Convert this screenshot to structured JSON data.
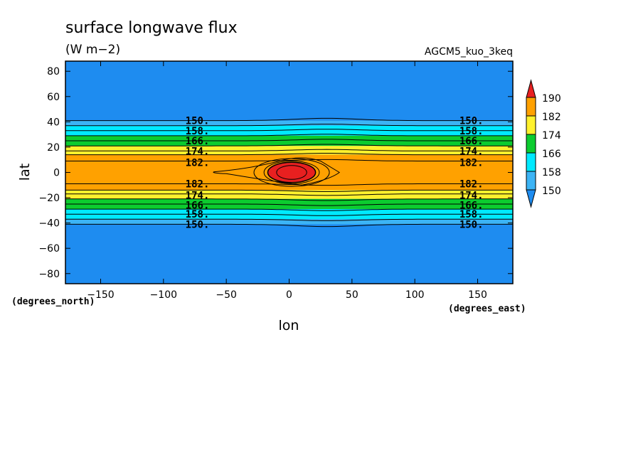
{
  "chart_data": {
    "type": "heatmap",
    "title": "surface longwave flux",
    "units": "(W m−2)",
    "model_label": "AGCM5_kuo_3keq",
    "xlabel": "lon",
    "ylabel": "lat",
    "x_units": "(degrees_east)",
    "y_units": "(degrees_north)",
    "xlim": [
      -178,
      178
    ],
    "ylim": [
      -88,
      88
    ],
    "x_ticks": [
      -150,
      -100,
      -50,
      0,
      50,
      100,
      150
    ],
    "y_ticks": [
      80,
      60,
      40,
      20,
      0,
      -20,
      -40,
      -60,
      -80
    ],
    "colorbar": {
      "levels": [
        150,
        158,
        166,
        174,
        182,
        190
      ],
      "colors": [
        "#1e8cf0",
        "#3cb4f5",
        "#00eaff",
        "#0ccc2f",
        "#fff12d",
        "#ffa100",
        "#e82020"
      ]
    },
    "colors": {
      "cold": "#1e8cf0",
      "mid_cold": "#3cb4f5",
      "cyan": "#00eaff",
      "green": "#0ccc2f",
      "yellow": "#fff12d",
      "orange": "#ffa100",
      "red": "#e82020"
    },
    "bands": [
      {
        "lat_from": 41,
        "lat_to": 37,
        "level": 150
      },
      {
        "lat_from": 37,
        "lat_to": 29,
        "level": 158
      },
      {
        "lat_from": 29,
        "lat_to": 21,
        "level": 166
      },
      {
        "lat_from": 21,
        "lat_to": 14,
        "level": 174
      },
      {
        "lat_from": 14,
        "lat_to": -14,
        "level": 182
      },
      {
        "lat_from": -14,
        "lat_to": -21,
        "level": 174
      },
      {
        "lat_from": -21,
        "lat_to": -29,
        "level": 166
      },
      {
        "lat_from": -29,
        "lat_to": -37,
        "level": 158
      },
      {
        "lat_from": -37,
        "lat_to": -41,
        "level": 150
      }
    ],
    "hotspot": {
      "lon": 0,
      "lat": 0,
      "level": 190
    },
    "contour_labels": [
      {
        "text": "150.",
        "lon": -73,
        "lat": 41
      },
      {
        "text": "158.",
        "lon": -73,
        "lat": 33
      },
      {
        "text": "166.",
        "lon": -73,
        "lat": 25
      },
      {
        "text": "174.",
        "lon": -73,
        "lat": 17
      },
      {
        "text": "182.",
        "lon": -73,
        "lat": 8
      },
      {
        "text": "182.",
        "lon": -73,
        "lat": -9
      },
      {
        "text": "174.",
        "lon": -73,
        "lat": -18
      },
      {
        "text": "166.",
        "lon": -73,
        "lat": -26
      },
      {
        "text": "158.",
        "lon": -73,
        "lat": -33
      },
      {
        "text": "150.",
        "lon": -73,
        "lat": -41
      },
      {
        "text": "150.",
        "lon": 145,
        "lat": 41
      },
      {
        "text": "158.",
        "lon": 145,
        "lat": 33
      },
      {
        "text": "166.",
        "lon": 145,
        "lat": 25
      },
      {
        "text": "174.",
        "lon": 145,
        "lat": 17
      },
      {
        "text": "182.",
        "lon": 145,
        "lat": 8
      },
      {
        "text": "182.",
        "lon": 145,
        "lat": -9
      },
      {
        "text": "174.",
        "lon": 145,
        "lat": -18
      },
      {
        "text": "166.",
        "lon": 145,
        "lat": -26
      },
      {
        "text": "158.",
        "lon": 145,
        "lat": -33
      },
      {
        "text": "150.",
        "lon": 145,
        "lat": -41
      }
    ]
  }
}
